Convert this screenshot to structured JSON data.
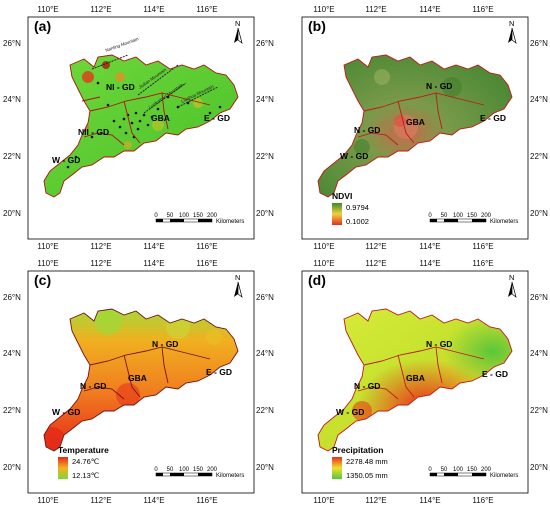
{
  "longitude_ticks": [
    "110°E",
    "112°E",
    "114°E",
    "116°E"
  ],
  "latitude_ticks": [
    "26°N",
    "24°N",
    "22°N",
    "20°N"
  ],
  "north_label": "N",
  "scale_bar": {
    "ticks": [
      "0",
      "50",
      "100",
      "150",
      "200"
    ],
    "unit": "Kilometers"
  },
  "panels": [
    {
      "label": "(a)",
      "regions": [
        "NI - GD",
        "NII - GD",
        "GBA",
        "W - GD",
        "E - GD"
      ],
      "mountains": [
        "Nanling Mountain",
        "Jiulian Mountain",
        "Luofushan Mountain",
        "Lianhua Mountain"
      ],
      "colors": {
        "fill": "#5fd12f",
        "boundary": "#b01010"
      }
    },
    {
      "label": "(b)",
      "regions": [
        "N - GD",
        "GBA",
        "N - GD",
        "W - GD",
        "E - GD"
      ],
      "legend": {
        "title": "NDVI",
        "max": "0.9794",
        "min": "0.1002"
      },
      "colors": {
        "fill": "#5e9440",
        "low": "#d06050",
        "boundary": "#c01818"
      }
    },
    {
      "label": "(c)",
      "regions": [
        "N - GD",
        "GBA",
        "N - GD",
        "W - GD",
        "E - GD"
      ],
      "legend": {
        "title": "Temperature",
        "max": "24.76℃",
        "min": "12.13℃"
      },
      "colors": {
        "fill": "#f49a20",
        "high": "#e42a18",
        "cool": "#9ed838",
        "boundary": "#7a1010"
      }
    },
    {
      "label": "(d)",
      "regions": [
        "N - GD",
        "GBA",
        "N - GD",
        "W - GD",
        "E - GD"
      ],
      "legend": {
        "title": "Precipitation",
        "max": "2278.48 mm",
        "min": "1350.05 mm"
      },
      "colors": {
        "fill": "#c8e82a",
        "high": "#e8301a",
        "boundary": "#c01818"
      }
    }
  ]
}
